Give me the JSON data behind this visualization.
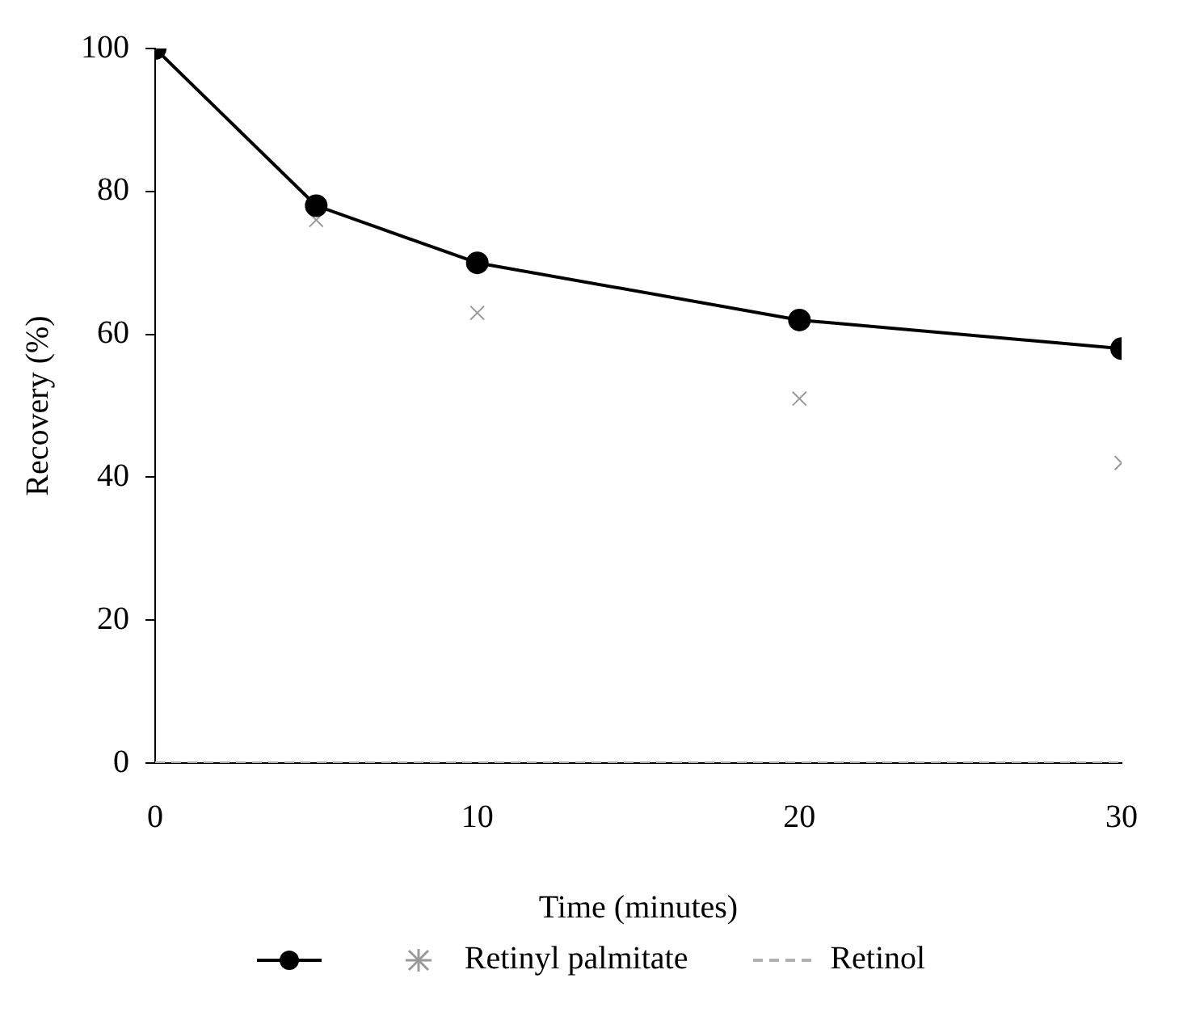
{
  "chart_data": {
    "type": "line",
    "xlabel": "Time (minutes)",
    "ylabel": "Recovery (%)",
    "x": [
      0,
      5,
      10,
      20,
      30
    ],
    "xlim": [
      0,
      30
    ],
    "xticks": [
      0,
      10,
      20,
      30
    ],
    "ylim": [
      0,
      100
    ],
    "yticks": [
      0,
      20,
      40,
      60,
      80,
      100
    ],
    "grid": false,
    "legend": "bottom",
    "series": [
      {
        "color": "#000000",
        "marker": "circle",
        "line_style": "solid",
        "values": [
          100,
          78,
          70,
          62,
          58
        ]
      },
      {
        "name": "Retinyl palmitate",
        "type": "scatter",
        "color": "#9a9a9a",
        "marker": "cross",
        "values": [
          null,
          76,
          63,
          51,
          42
        ]
      },
      {
        "name": "Retinol",
        "color": "#b0b0b0",
        "marker": "none",
        "line_style": "dashed",
        "values": [
          0,
          0,
          0,
          0,
          0
        ]
      }
    ]
  }
}
